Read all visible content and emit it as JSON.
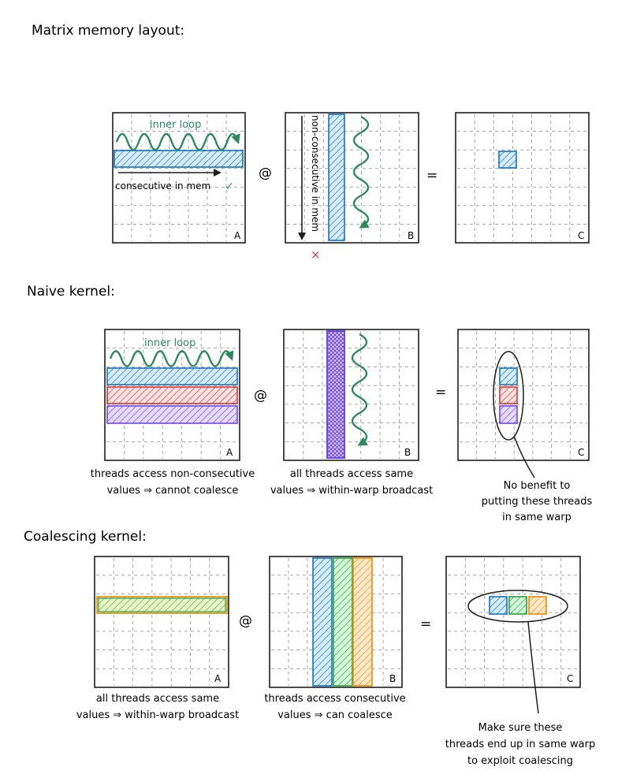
{
  "sections": {
    "layout_title": "Matrix memory layout:",
    "naive_title": "Naive kernel:",
    "coalescing_title": "Coalescing kernel:"
  },
  "operators": {
    "matmul": "@",
    "equals": "="
  },
  "matrix_labels": {
    "a": "A",
    "b": "B",
    "c": "C"
  },
  "layout": {
    "inner_loop": "inner loop",
    "consecutive": "consecutive in mem",
    "check_mark": "✓",
    "non_consecutive": "non-consecutive in mem",
    "cross_mark": "×"
  },
  "naive": {
    "inner_loop": "inner loop",
    "a_caption_line1": "threads access non-consecutive",
    "a_caption_line2": "values ⇒ cannot coalesce",
    "b_caption_line1": "all threads access same",
    "b_caption_line2": "values ⇒ within-warp broadcast",
    "c_note_line1": "No benefit to",
    "c_note_line2": "putting these threads",
    "c_note_line3": "in same warp"
  },
  "coalescing": {
    "a_caption_line1": "all threads access same",
    "a_caption_line2": "values ⇒ within-warp broadcast",
    "b_caption_line1": "threads access consecutive",
    "b_caption_line2": "values ⇒ can coalesce",
    "c_note_line1": "Make sure these",
    "c_note_line2": "threads end up in same warp",
    "c_note_line3": "to exploit coalescing"
  },
  "colors": {
    "ink": "#1e1e1e",
    "grid": "#9a9a9a",
    "blue": "#1971c2",
    "blue_fill": "#a5d8ff",
    "red": "#e03131",
    "red_fill": "#ffc9c9",
    "purple": "#7048e8",
    "purple_fill": "#d0bfff",
    "green": "#2f9e44",
    "green_fill": "#b2f2bb",
    "orange": "#f08c00",
    "orange_fill": "#ffd8a8",
    "teal": "#2b8a5e"
  }
}
